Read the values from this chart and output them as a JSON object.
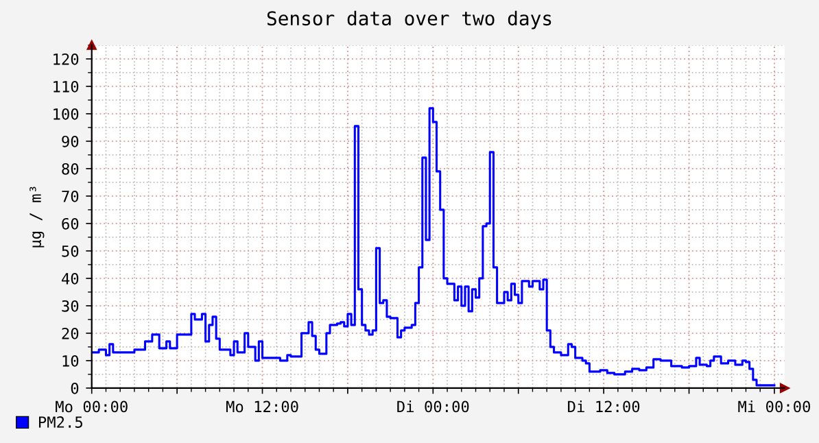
{
  "chart_data": {
    "type": "step",
    "title": "Sensor data over two days",
    "ylabel": "µg / m³",
    "ylim": [
      0,
      125
    ],
    "yticks": [
      0,
      10,
      20,
      30,
      40,
      50,
      60,
      70,
      80,
      90,
      100,
      110,
      120
    ],
    "grid": true,
    "legend": "bottom left",
    "categories": [
      "Mo 00:00",
      null,
      null,
      null,
      null,
      null,
      null,
      null,
      null,
      null,
      null,
      null,
      null,
      null,
      null,
      null,
      null,
      null,
      null,
      null,
      null,
      null,
      null,
      null,
      null,
      null,
      null,
      null,
      null,
      null,
      null,
      null,
      null,
      null,
      null,
      null,
      null,
      null,
      null,
      null,
      null,
      null,
      null,
      null,
      null,
      null,
      null,
      null,
      "Mo 12:00",
      null,
      null,
      null,
      null,
      null,
      null,
      null,
      null,
      null,
      null,
      null,
      null,
      null,
      null,
      null,
      null,
      null,
      null,
      null,
      null,
      null,
      null,
      null,
      null,
      null,
      null,
      null,
      null,
      null,
      null,
      null,
      null,
      null,
      null,
      null,
      null,
      null,
      null,
      null,
      null,
      null,
      null,
      null,
      null,
      null,
      null,
      null,
      "Di 00:00",
      null,
      null,
      null,
      null,
      null,
      null,
      null,
      null,
      null,
      null,
      null,
      null,
      null,
      null,
      null,
      null,
      null,
      null,
      null,
      null,
      null,
      null,
      null,
      null,
      null,
      null,
      null,
      null,
      null,
      null,
      null,
      null,
      null,
      null,
      null,
      null,
      null,
      null,
      null,
      null,
      null,
      null,
      null,
      null,
      null,
      null,
      null,
      "Di 12:00",
      null,
      null,
      null,
      null,
      null,
      null,
      null,
      null,
      null,
      null,
      null,
      null,
      null,
      null,
      null,
      null,
      null,
      null,
      null,
      null,
      null,
      null,
      null,
      null,
      null,
      null,
      null,
      null,
      null,
      null,
      null,
      null,
      null,
      null,
      null,
      null,
      null,
      null,
      null,
      null,
      null,
      null,
      null,
      null,
      null,
      null,
      null,
      "Mi 00:00"
    ],
    "series": [
      {
        "name": "PM2.5",
        "color": "#0000ff",
        "values": [
          13,
          13,
          14,
          14,
          12,
          16,
          13,
          13,
          13,
          13,
          13,
          13,
          14,
          14,
          14,
          17,
          17,
          19.5,
          19.5,
          14.5,
          14.5,
          17,
          14.5,
          14.5,
          19.5,
          19.5,
          19.5,
          19.5,
          27,
          25,
          25,
          27,
          17,
          23,
          26,
          18,
          14,
          14,
          14,
          12,
          17,
          13,
          13,
          20,
          15,
          15,
          10,
          17,
          11,
          11,
          11,
          11,
          11,
          10,
          10,
          12,
          11.5,
          11.5,
          11.5,
          20,
          20,
          24,
          19,
          14,
          12.5,
          12.5,
          20,
          23,
          23,
          23.5,
          24,
          22.5,
          27,
          23,
          95.5,
          36,
          23,
          21,
          19.5,
          21,
          51,
          31,
          32,
          26,
          25.5,
          25.5,
          18.5,
          21,
          22,
          22,
          23,
          31,
          44,
          84,
          54,
          102,
          97,
          79,
          65,
          40,
          38,
          38,
          32,
          37,
          30,
          37,
          28,
          36,
          33,
          40,
          59,
          60,
          86,
          44,
          31,
          31,
          35,
          32,
          38,
          34,
          31,
          39,
          39,
          37,
          39,
          39,
          36,
          39.5,
          21,
          15,
          13,
          13,
          12,
          12,
          16,
          15,
          11,
          11,
          10,
          9,
          6,
          6,
          6,
          6.5,
          6.5,
          5.5,
          5.5,
          5,
          5,
          5,
          6,
          6,
          7,
          7,
          6.5,
          6.5,
          7.5,
          7.5,
          10.5,
          10.5,
          10,
          10,
          10,
          8,
          8,
          8,
          7.5,
          7.5,
          8,
          8,
          11,
          8.5,
          8.5,
          8,
          10,
          11.5,
          11.5,
          9,
          9,
          10,
          10,
          8.5,
          8.5,
          10,
          9.5,
          7,
          3,
          1,
          1,
          1,
          1,
          1,
          1
        ]
      }
    ]
  }
}
